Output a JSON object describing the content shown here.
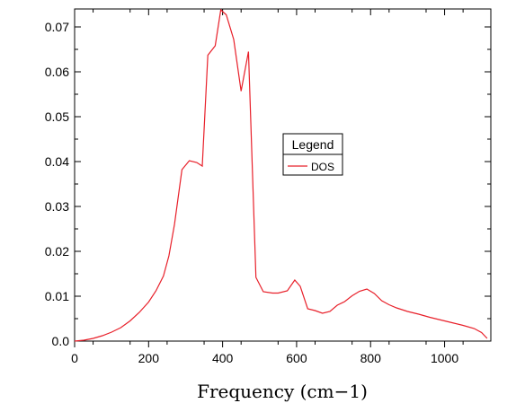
{
  "chart_data": {
    "type": "line",
    "title": "",
    "xlabel": "Frequency (cm−1)",
    "ylabel": "",
    "xlim": [
      0,
      1125
    ],
    "ylim": [
      0,
      0.074
    ],
    "xticks": [
      0,
      200,
      400,
      600,
      800,
      1000
    ],
    "xtick_labels": [
      "0",
      "200",
      "400",
      "600",
      "800",
      "1000"
    ],
    "yticks": [
      0.0,
      0.01,
      0.02,
      0.03,
      0.04,
      0.05,
      0.06,
      0.07
    ],
    "ytick_labels": [
      "0.0",
      "0.01",
      "0.02",
      "0.03",
      "0.04",
      "0.05",
      "0.06",
      "0.07"
    ],
    "grid": false,
    "legend": {
      "title": "Legend",
      "placement": "center-right"
    },
    "series": [
      {
        "name": "DOS",
        "color": "#e8202a",
        "x": [
          0,
          25,
          50,
          75,
          100,
          125,
          150,
          175,
          200,
          220,
          240,
          255,
          270,
          290,
          310,
          330,
          345,
          360,
          380,
          395,
          410,
          430,
          450,
          470,
          490,
          510,
          535,
          550,
          575,
          595,
          610,
          630,
          650,
          670,
          690,
          710,
          730,
          750,
          770,
          790,
          810,
          830,
          850,
          870,
          900,
          930,
          960,
          990,
          1020,
          1050,
          1080,
          1100,
          1115
        ],
        "y": [
          0.0,
          0.0002,
          0.0006,
          0.0012,
          0.002,
          0.003,
          0.0045,
          0.0064,
          0.0087,
          0.0112,
          0.0145,
          0.019,
          0.026,
          0.0382,
          0.0402,
          0.0398,
          0.039,
          0.0637,
          0.0658,
          0.0738,
          0.0727,
          0.0672,
          0.0557,
          0.0645,
          0.0142,
          0.011,
          0.0107,
          0.0107,
          0.0112,
          0.0136,
          0.0122,
          0.0072,
          0.0068,
          0.0062,
          0.0066,
          0.008,
          0.0088,
          0.0101,
          0.0111,
          0.0116,
          0.0106,
          0.009,
          0.0081,
          0.0074,
          0.0066,
          0.006,
          0.0053,
          0.0047,
          0.0041,
          0.0035,
          0.0028,
          0.0019,
          0.0006
        ]
      }
    ]
  }
}
